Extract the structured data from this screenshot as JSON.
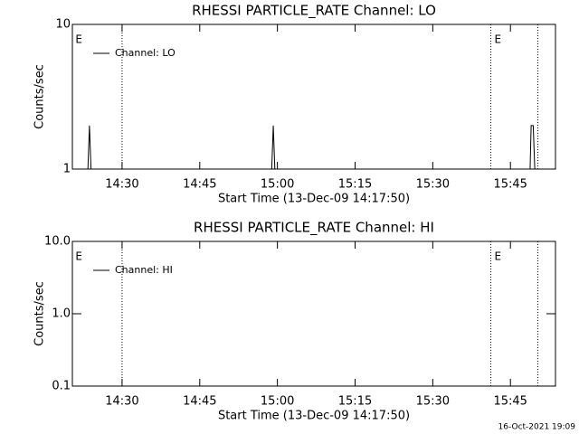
{
  "chart_data": [
    {
      "type": "line",
      "title": "RHESSI PARTICLE_RATE Channel: LO",
      "x_label": "Start Time (13-Dec-09 14:17:50)",
      "y_label": "Counts/sec",
      "log_y": true,
      "ylim": [
        1,
        10
      ],
      "yticks": [
        1,
        10
      ],
      "xlim": [
        860.4,
        953.7
      ],
      "xticks": [
        {
          "value": 870,
          "label": "14:30"
        },
        {
          "value": 885,
          "label": "14:45"
        },
        {
          "value": 900,
          "label": "15:00"
        },
        {
          "value": 915,
          "label": "15:15"
        },
        {
          "value": 930,
          "label": "15:30"
        },
        {
          "value": 945,
          "label": "15:45"
        }
      ],
      "vlines": [
        870.0,
        941.2,
        950.3
      ],
      "annotations": [
        {
          "text": "E",
          "x": 861.0
        },
        {
          "text": "E",
          "x": 941.9
        }
      ],
      "series": [
        {
          "name": "Channel: LO",
          "color": "#000000",
          "x": [
            863.4,
            863.7,
            864.0,
            880.0,
            898.9,
            899.2,
            899.5,
            920.0,
            948.8,
            949.0,
            949.4,
            949.7
          ],
          "values": [
            1,
            2,
            1,
            null,
            1,
            2,
            1,
            null,
            1,
            2,
            2,
            1
          ]
        }
      ]
    },
    {
      "type": "line",
      "title": "RHESSI PARTICLE_RATE Channel: HI",
      "x_label": "Start Time (13-Dec-09 14:17:50)",
      "y_label": "Counts/sec",
      "log_y": true,
      "ylim": [
        0.1,
        10
      ],
      "yticks": [
        {
          "value": 0.1,
          "label": "0.1"
        },
        {
          "value": 1,
          "label": "1.0"
        },
        {
          "value": 10,
          "label": "10.0"
        }
      ],
      "xlim": [
        860.4,
        953.7
      ],
      "xticks": [
        {
          "value": 870,
          "label": "14:30"
        },
        {
          "value": 885,
          "label": "14:45"
        },
        {
          "value": 900,
          "label": "15:00"
        },
        {
          "value": 915,
          "label": "15:15"
        },
        {
          "value": 930,
          "label": "15:30"
        },
        {
          "value": 945,
          "label": "15:45"
        }
      ],
      "vlines": [
        870.0,
        941.2,
        950.3
      ],
      "annotations": [
        {
          "text": "E",
          "x": 861.0
        },
        {
          "text": "E",
          "x": 941.9
        }
      ],
      "series": [
        {
          "name": "Channel: HI",
          "color": "#000000",
          "x": [],
          "values": []
        }
      ]
    }
  ],
  "footer": "16-Oct-2021 19:09"
}
